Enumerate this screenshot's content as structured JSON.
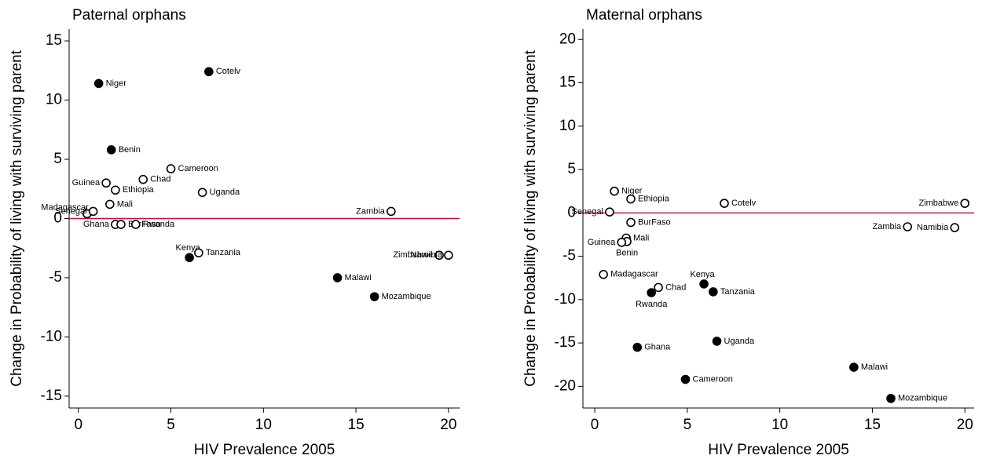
{
  "chart_data": [
    {
      "type": "scatter",
      "title": "Paternal orphans",
      "x_label": "HIV Prevalence 2005",
      "y_label": "Change in Probability of living with surviving parent",
      "labels": [
        "Niger",
        "Cotelv",
        "Benin",
        "Cameroon",
        "Chad",
        "Guinea",
        "Ethiopia",
        "Uganda",
        "Mali",
        "Madagascar",
        "Senegal",
        "Zambia",
        "Ghana",
        "BurFaso",
        "Rwanda",
        "Kenya",
        "Tanzania",
        "Zimbabwe",
        "Namibia",
        "Malawi",
        "Mozambique"
      ],
      "x": [
        1.1,
        7.05,
        1.78,
        5.0,
        3.5,
        1.5,
        2.0,
        6.7,
        1.7,
        0.47,
        0.8,
        16.9,
        2.0,
        2.3,
        3.1,
        6.0,
        6.5,
        19.5,
        20.0,
        14.0,
        16.0
      ],
      "y": [
        11.4,
        12.4,
        5.8,
        4.2,
        3.3,
        3.0,
        2.4,
        2.2,
        1.2,
        0.4,
        0.6,
        0.6,
        -0.5,
        -0.5,
        -0.5,
        -3.3,
        -2.9,
        -3.1,
        -3.1,
        -5.0,
        -6.6
      ],
      "filled": [
        true,
        true,
        true,
        false,
        false,
        false,
        false,
        false,
        false,
        false,
        false,
        false,
        false,
        false,
        false,
        true,
        false,
        false,
        false,
        true,
        true
      ],
      "color": "#000000",
      "reference_line": {
        "y": 0,
        "color": "#c0143c"
      },
      "xlim": [
        -0.5,
        20.6
      ],
      "ylim": [
        -16,
        16
      ],
      "xticks": [
        0,
        5,
        10,
        15,
        20
      ],
      "yticks": [
        -15,
        -10,
        -5,
        0,
        5,
        10,
        15
      ]
    },
    {
      "type": "scatter",
      "title": "Maternal orphans",
      "x_label": "HIV Prevalence 2005",
      "y_label": "Change in Probability of living with surviving parent",
      "labels": [
        "Niger",
        "Ethiopia",
        "Senegal",
        "Cotelv",
        "Zimbabwe",
        "BurFaso",
        "Mali",
        "Benin",
        "Guinea",
        "Zambia",
        "Namibia",
        "Madagascar",
        "Chad",
        "Rwanda",
        "Kenya",
        "Tanzania",
        "Ghana",
        "Uganda",
        "Cameroon",
        "Malawi",
        "Mozambique"
      ],
      "x": [
        1.06,
        1.95,
        0.8,
        7.0,
        20.0,
        1.95,
        1.7,
        1.74,
        1.45,
        16.9,
        19.45,
        0.47,
        3.44,
        3.06,
        5.9,
        6.4,
        2.3,
        6.6,
        4.9,
        14.0,
        16.0
      ],
      "y": [
        2.5,
        1.6,
        0.1,
        1.1,
        1.1,
        -1.1,
        -2.9,
        -3.3,
        -3.4,
        -1.6,
        -1.7,
        -7.1,
        -8.6,
        -9.2,
        -8.2,
        -9.1,
        -15.5,
        -14.8,
        -19.2,
        -17.8,
        -21.4
      ],
      "filled": [
        false,
        false,
        false,
        false,
        false,
        false,
        false,
        false,
        false,
        false,
        false,
        false,
        false,
        true,
        true,
        true,
        true,
        true,
        true,
        true,
        true
      ],
      "color": "#000000",
      "reference_line": {
        "y": 0,
        "color": "#c0143c"
      },
      "xlim": [
        -0.64,
        20.5
      ],
      "ylim": [
        -22.5,
        21.2
      ],
      "xticks": [
        0,
        5,
        10,
        15,
        20
      ],
      "yticks": [
        -20,
        -15,
        -10,
        -5,
        0,
        5,
        10,
        15,
        20
      ]
    }
  ]
}
